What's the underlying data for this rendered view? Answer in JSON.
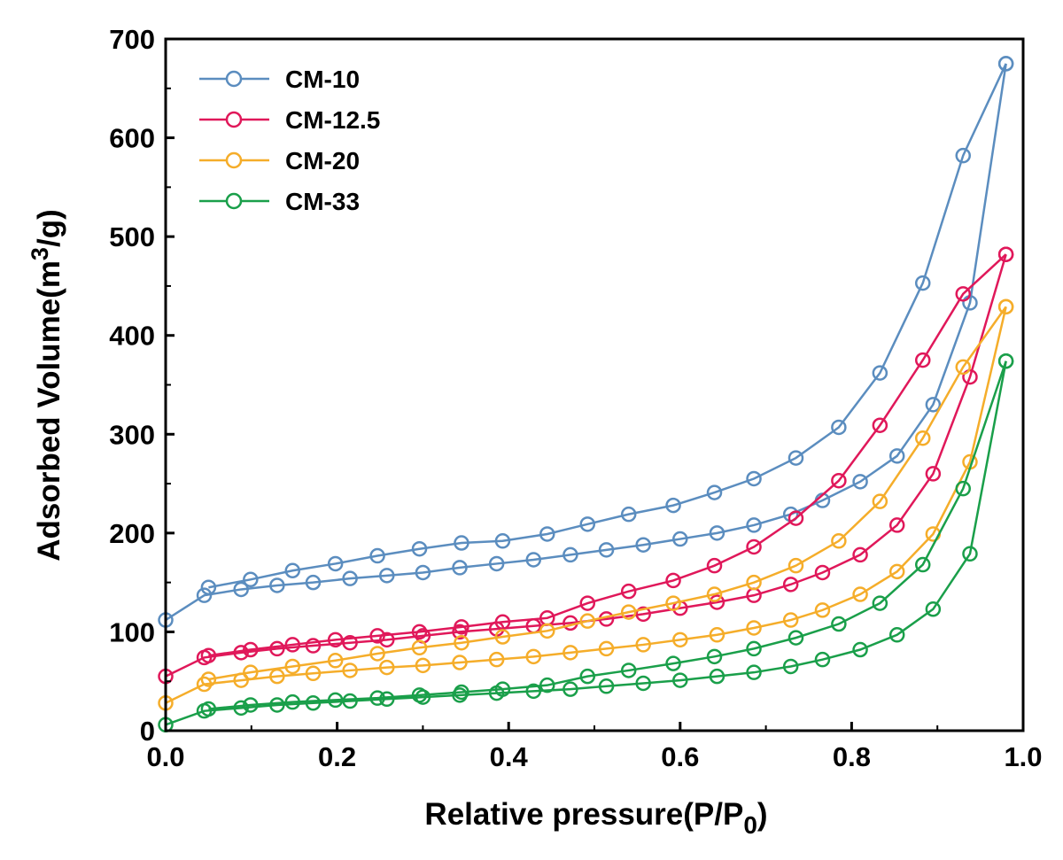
{
  "chart_data": {
    "type": "line",
    "xlabel_main": "Relative pressure(P/P",
    "xlabel_sub": "0",
    "xlabel_close": ")",
    "ylabel_main": "Adsorbed Volume(m",
    "ylabel_sup": "3",
    "ylabel_close": "/g)",
    "xlim": [
      0.0,
      1.0
    ],
    "ylim": [
      0,
      700
    ],
    "xticks": [
      "0.0",
      "0.2",
      "0.4",
      "0.6",
      "0.8",
      "1.0"
    ],
    "yticks": [
      "0",
      "100",
      "200",
      "300",
      "400",
      "500",
      "600",
      "700"
    ],
    "legend_position": "top-left",
    "grid": false,
    "series": [
      {
        "name": "CM-10",
        "color": "#5b8dbf",
        "adsorption": [
          [
            0.0,
            112
          ],
          [
            0.045,
            137
          ],
          [
            0.088,
            143
          ],
          [
            0.13,
            147
          ],
          [
            0.172,
            150
          ],
          [
            0.215,
            154
          ],
          [
            0.258,
            157
          ],
          [
            0.3,
            160
          ],
          [
            0.343,
            165
          ],
          [
            0.386,
            169
          ],
          [
            0.429,
            173
          ],
          [
            0.472,
            178
          ],
          [
            0.514,
            183
          ],
          [
            0.557,
            188
          ],
          [
            0.6,
            194
          ],
          [
            0.643,
            200
          ],
          [
            0.686,
            208
          ],
          [
            0.729,
            219
          ],
          [
            0.766,
            233
          ],
          [
            0.81,
            252
          ],
          [
            0.853,
            278
          ],
          [
            0.895,
            330
          ],
          [
            0.938,
            433
          ],
          [
            0.98,
            675
          ]
        ],
        "desorption": [
          [
            0.98,
            675
          ],
          [
            0.93,
            582
          ],
          [
            0.883,
            453
          ],
          [
            0.833,
            362
          ],
          [
            0.785,
            307
          ],
          [
            0.735,
            276
          ],
          [
            0.686,
            255
          ],
          [
            0.64,
            241
          ],
          [
            0.592,
            228
          ],
          [
            0.54,
            219
          ],
          [
            0.492,
            209
          ],
          [
            0.445,
            199
          ],
          [
            0.393,
            192
          ],
          [
            0.345,
            190
          ],
          [
            0.296,
            184
          ],
          [
            0.247,
            177
          ],
          [
            0.198,
            169
          ],
          [
            0.148,
            162
          ],
          [
            0.099,
            153
          ],
          [
            0.05,
            145
          ]
        ]
      },
      {
        "name": "CM-12.5",
        "color": "#e0185a",
        "adsorption": [
          [
            0.0,
            55
          ],
          [
            0.045,
            74
          ],
          [
            0.088,
            79
          ],
          [
            0.13,
            83
          ],
          [
            0.172,
            86
          ],
          [
            0.215,
            89
          ],
          [
            0.258,
            92
          ],
          [
            0.3,
            96
          ],
          [
            0.343,
            100
          ],
          [
            0.386,
            103
          ],
          [
            0.429,
            106
          ],
          [
            0.472,
            109
          ],
          [
            0.514,
            113
          ],
          [
            0.557,
            118
          ],
          [
            0.6,
            124
          ],
          [
            0.643,
            130
          ],
          [
            0.686,
            137
          ],
          [
            0.729,
            148
          ],
          [
            0.766,
            160
          ],
          [
            0.81,
            178
          ],
          [
            0.853,
            208
          ],
          [
            0.895,
            260
          ],
          [
            0.938,
            358
          ],
          [
            0.98,
            482
          ]
        ],
        "desorption": [
          [
            0.98,
            482
          ],
          [
            0.93,
            442
          ],
          [
            0.883,
            375
          ],
          [
            0.833,
            309
          ],
          [
            0.785,
            253
          ],
          [
            0.735,
            215
          ],
          [
            0.686,
            186
          ],
          [
            0.64,
            167
          ],
          [
            0.592,
            152
          ],
          [
            0.54,
            141
          ],
          [
            0.492,
            129
          ],
          [
            0.445,
            114
          ],
          [
            0.393,
            110
          ],
          [
            0.345,
            105
          ],
          [
            0.296,
            100
          ],
          [
            0.247,
            96
          ],
          [
            0.198,
            92
          ],
          [
            0.148,
            87
          ],
          [
            0.099,
            82
          ],
          [
            0.05,
            76
          ]
        ]
      },
      {
        "name": "CM-20",
        "color": "#f5ad2a",
        "adsorption": [
          [
            0.0,
            28
          ],
          [
            0.045,
            47
          ],
          [
            0.088,
            51
          ],
          [
            0.13,
            55
          ],
          [
            0.172,
            58
          ],
          [
            0.215,
            61
          ],
          [
            0.258,
            64
          ],
          [
            0.3,
            66
          ],
          [
            0.343,
            69
          ],
          [
            0.386,
            72
          ],
          [
            0.429,
            75
          ],
          [
            0.472,
            79
          ],
          [
            0.514,
            83
          ],
          [
            0.557,
            87
          ],
          [
            0.6,
            92
          ],
          [
            0.643,
            97
          ],
          [
            0.686,
            104
          ],
          [
            0.729,
            112
          ],
          [
            0.766,
            122
          ],
          [
            0.81,
            138
          ],
          [
            0.853,
            161
          ],
          [
            0.895,
            199
          ],
          [
            0.938,
            272
          ],
          [
            0.98,
            429
          ]
        ],
        "desorption": [
          [
            0.98,
            429
          ],
          [
            0.93,
            368
          ],
          [
            0.883,
            296
          ],
          [
            0.833,
            232
          ],
          [
            0.785,
            192
          ],
          [
            0.735,
            167
          ],
          [
            0.686,
            150
          ],
          [
            0.64,
            138
          ],
          [
            0.592,
            129
          ],
          [
            0.54,
            120
          ],
          [
            0.492,
            111
          ],
          [
            0.445,
            101
          ],
          [
            0.393,
            95
          ],
          [
            0.345,
            89
          ],
          [
            0.296,
            84
          ],
          [
            0.247,
            78
          ],
          [
            0.198,
            71
          ],
          [
            0.148,
            65
          ],
          [
            0.099,
            59
          ],
          [
            0.05,
            52
          ]
        ]
      },
      {
        "name": "CM-33",
        "color": "#1a9f4a",
        "adsorption": [
          [
            0.0,
            6
          ],
          [
            0.045,
            20
          ],
          [
            0.088,
            23
          ],
          [
            0.13,
            26
          ],
          [
            0.172,
            28
          ],
          [
            0.215,
            30
          ],
          [
            0.258,
            32
          ],
          [
            0.3,
            34
          ],
          [
            0.343,
            36
          ],
          [
            0.386,
            38
          ],
          [
            0.429,
            40
          ],
          [
            0.472,
            42
          ],
          [
            0.514,
            45
          ],
          [
            0.557,
            48
          ],
          [
            0.6,
            51
          ],
          [
            0.643,
            55
          ],
          [
            0.686,
            59
          ],
          [
            0.729,
            65
          ],
          [
            0.766,
            72
          ],
          [
            0.81,
            82
          ],
          [
            0.853,
            97
          ],
          [
            0.895,
            123
          ],
          [
            0.938,
            179
          ],
          [
            0.98,
            374
          ]
        ],
        "desorption": [
          [
            0.98,
            374
          ],
          [
            0.93,
            245
          ],
          [
            0.883,
            168
          ],
          [
            0.833,
            129
          ],
          [
            0.785,
            108
          ],
          [
            0.735,
            94
          ],
          [
            0.686,
            83
          ],
          [
            0.64,
            75
          ],
          [
            0.592,
            68
          ],
          [
            0.54,
            61
          ],
          [
            0.492,
            55
          ],
          [
            0.445,
            46
          ],
          [
            0.393,
            42
          ],
          [
            0.345,
            39
          ],
          [
            0.296,
            36
          ],
          [
            0.247,
            33
          ],
          [
            0.198,
            31
          ],
          [
            0.148,
            29
          ],
          [
            0.099,
            26
          ],
          [
            0.05,
            22
          ]
        ]
      }
    ]
  }
}
